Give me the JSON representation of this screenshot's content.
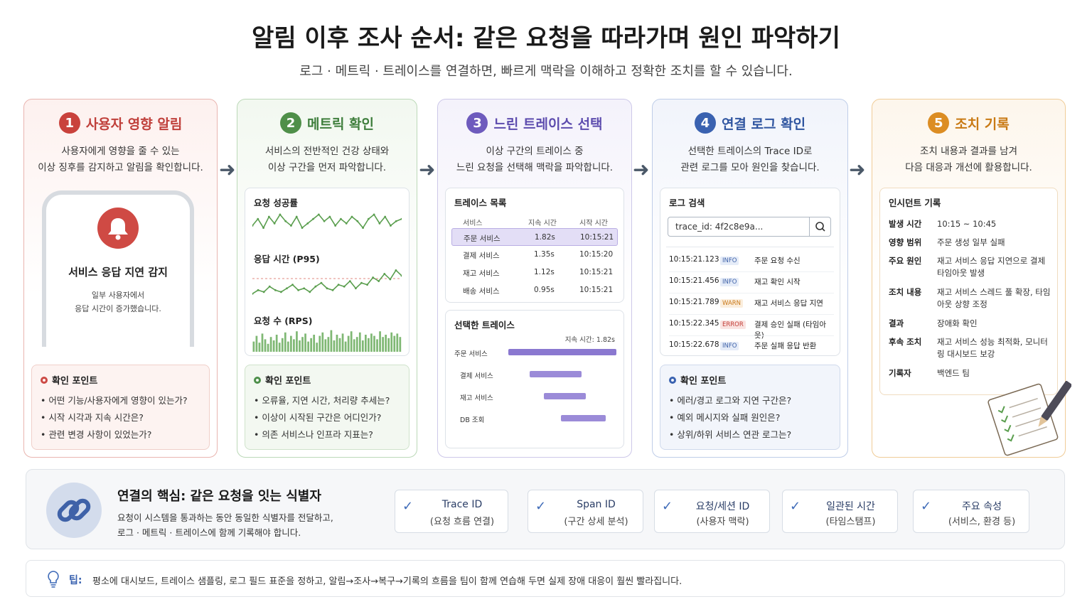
{
  "title": "알림 이후 조사 순서: 같은 요청을 따라가며 원인 파악하기",
  "subtitle": "로그 · 메트릭 · 트레이스를 연결하면, 빠르게 맥락을 이해하고 정확한 조치를 할 수 있습니다.",
  "steps": [
    {
      "num": "1",
      "title": "사용자 영향 알림",
      "desc1": "사용자에게 영향을 줄 수 있는",
      "desc2": "이상 징후를 감지하고 알림을 확인합니다.",
      "color": "#cc4a45"
    },
    {
      "num": "2",
      "title": "메트릭 확인",
      "desc1": "서비스의 전반적인 건강 상태와",
      "desc2": "이상 구간을 먼저 파악합니다.",
      "color": "#4d8f4a"
    },
    {
      "num": "3",
      "title": "느린 트레이스 선택",
      "desc1": "이상 구간의 트레이스 중",
      "desc2": "느린 요청을 선택해 맥락을 파악합니다.",
      "color": "#6e5bbd"
    },
    {
      "num": "4",
      "title": "연결 로그 확인",
      "desc1": "선택한 트레이스의 Trace ID로",
      "desc2": "관련 로그를 모아 원인을 찾습니다.",
      "color": "#3a62b0"
    },
    {
      "num": "5",
      "title": "조치 기록",
      "desc1": "조치 내용과 결과를 남겨",
      "desc2": "다음 대응과 개선에 활용합니다.",
      "color": "#d98a22"
    }
  ],
  "alert": {
    "title": "서비스 응답 지연 감지",
    "line1": "일부 사용자에서",
    "line2": "응답 시간이 증가했습니다.",
    "icon": "bell-icon"
  },
  "check1": {
    "title": "확인 포인트",
    "items": [
      "어떤 기능/사용자에게 영향이 있는가?",
      "시작 시각과 지속 시간은?",
      "관련 변경 사항이 있었는가?"
    ]
  },
  "check2": {
    "title": "확인 포인트",
    "items": [
      "오류율, 지연 시간, 처리량 추세는?",
      "이상이 시작된 구간은 어디인가?",
      "의존 서비스나 인프라 지표는?"
    ]
  },
  "check4": {
    "title": "확인 포인트",
    "items": [
      "에러/경고 로그와 지연 구간은?",
      "예외 메시지와 실패 원인은?",
      "상위/하위 서비스 연관 로그는?"
    ]
  },
  "metrics": {
    "success": "요청 성공률",
    "latency": "응답 시간 (P95)",
    "rps": "요청 수 (RPS)"
  },
  "chart_data": [
    {
      "type": "line",
      "title": "요청 성공률",
      "values": [
        5,
        8,
        4,
        9,
        6,
        10,
        7,
        5,
        9,
        4,
        6,
        8,
        10,
        7,
        9,
        5,
        8,
        6,
        9,
        7,
        4,
        8,
        10,
        6,
        9,
        5,
        7,
        8
      ]
    },
    {
      "type": "line",
      "title": "응답 시간 (P95)",
      "values": [
        3,
        5,
        4,
        7,
        5,
        4,
        6,
        8,
        5,
        6,
        4,
        7,
        9,
        6,
        5,
        8,
        7,
        10,
        6,
        9,
        8,
        12,
        10,
        14,
        11,
        16,
        13
      ]
    },
    {
      "type": "bar",
      "title": "요청 수 (RPS)",
      "values": [
        9,
        14,
        8,
        16,
        11,
        7,
        13,
        10,
        15,
        8,
        12,
        17,
        9,
        14,
        11,
        18,
        10,
        13,
        16,
        9,
        12,
        15,
        8,
        14,
        17,
        11,
        13,
        19,
        10,
        15,
        12,
        16,
        9,
        14,
        18,
        11,
        13,
        17,
        10,
        15,
        12,
        16,
        14,
        11,
        18,
        13,
        15,
        12,
        17,
        14,
        16,
        13
      ]
    }
  ],
  "traces": {
    "title": "트레이스 목록",
    "headers": [
      "서비스",
      "지속 시간",
      "시작 시간"
    ],
    "rows": [
      [
        "주문 서비스",
        "1.82s",
        "10:15:21"
      ],
      [
        "결제 서비스",
        "1.35s",
        "10:15:20"
      ],
      [
        "재고 서비스",
        "1.12s",
        "10:15:21"
      ],
      [
        "배송 서비스",
        "0.95s",
        "10:15:21"
      ]
    ]
  },
  "selected": {
    "title": "선택한 트레이스",
    "duration": "지속 시간: 1.82s",
    "spans": [
      {
        "name": "주문 서비스",
        "start": 0,
        "end": 1.0
      },
      {
        "name": "결제 서비스",
        "start": 0.2,
        "end": 0.68
      },
      {
        "name": "재고 서비스",
        "start": 0.33,
        "end": 0.72
      },
      {
        "name": "DB 조회",
        "start": 0.49,
        "end": 0.9
      }
    ]
  },
  "logs": {
    "title": "로그 검색",
    "query": "trace_id: 4f2c8e9a...",
    "icon": "search-icon",
    "rows": [
      [
        "10:15:21.123",
        "INFO",
        "주문 요청 수신"
      ],
      [
        "10:15:21.456",
        "INFO",
        "재고 확인 시작"
      ],
      [
        "10:15:21.789",
        "WARN",
        "재고 서비스 응답 지연"
      ],
      [
        "10:15:22.345",
        "ERROR",
        "결제 승인 실패 (타임아웃)"
      ],
      [
        "10:15:22.678",
        "INFO",
        "주문 실패 응답 반환"
      ]
    ]
  },
  "incident": {
    "title": "인시던트 기록",
    "rows": [
      {
        "k": "발생 시간",
        "v": "10:15 ~ 10:45"
      },
      {
        "k": "영향 범위",
        "v": "주문 생성 일부 실패"
      },
      {
        "k": "주요 원인",
        "v": "재고 서비스 응답 지연으로 결제 타임아웃 발생"
      },
      {
        "k": "조치 내용",
        "v": "재고 서비스 스레드 풀 확장, 타임아웃 상향 조정"
      },
      {
        "k": "결과",
        "v": "장애화 확인"
      },
      {
        "k": "후속 조치",
        "v": "재고 서비스 성능 최적화, 모니터링 대시보드 보강"
      },
      {
        "k": "기록자",
        "v": "백엔드 팀"
      }
    ]
  },
  "core": {
    "title": "연결의 핵심: 같은 요청을 잇는 식별자",
    "desc1": "요청이 시스템을 통과하는 동안 동일한 식별자를 전달하고,",
    "desc2": "로그 · 메트릭 · 트레이스에 함께 기록해야 합니다.",
    "badges": [
      {
        "l1": "Trace ID",
        "l2": "(요청 흐름 연결)"
      },
      {
        "l1": "Span ID",
        "l2": "(구간 상세 분석)"
      },
      {
        "l1": "요청/세션 ID",
        "l2": "(사용자 맥락)"
      },
      {
        "l1": "일관된 시간",
        "l2": "(타임스탬프)"
      },
      {
        "l1": "주요 속성",
        "l2": "(서비스, 환경 등)"
      }
    ]
  },
  "tip": {
    "label": "팁:",
    "text": "평소에 대시보드, 트레이스 샘플링, 로그 필드 표준을 정하고, 알림→조사→복구→기록의 흐름을 팀이 함께 연습해 두면 실제 장애 대응이 훨씬 빨라집니다."
  }
}
